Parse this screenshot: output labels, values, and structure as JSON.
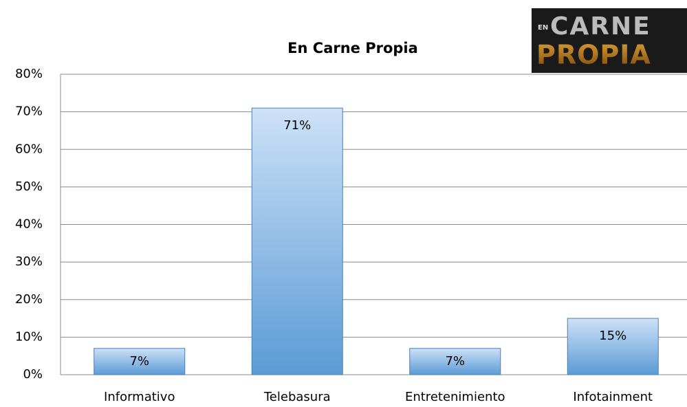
{
  "chart_data": {
    "type": "bar",
    "title": "En Carne Propia",
    "categories": [
      "Informativo",
      "Telebasura",
      "Entretenimiento",
      "Infotainment"
    ],
    "values": [
      7,
      71,
      7,
      15
    ],
    "value_labels": [
      "7%",
      "71%",
      "7%",
      "15%"
    ],
    "color": "#5b9bd5",
    "ylim": [
      0,
      80
    ],
    "yticks": [
      {
        "value": 0,
        "label": "0%"
      },
      {
        "value": 10,
        "label": "10%"
      },
      {
        "value": 20,
        "label": "20%"
      },
      {
        "value": 30,
        "label": "30%"
      },
      {
        "value": 40,
        "label": "40%"
      },
      {
        "value": 50,
        "label": "50%"
      },
      {
        "value": 60,
        "label": "60%"
      },
      {
        "value": 70,
        "label": "70%"
      },
      {
        "value": 80,
        "label": "80%"
      }
    ],
    "grid": true
  },
  "logo": {
    "small": "EN",
    "line1": "CARNE",
    "line2": "PROPIA"
  }
}
